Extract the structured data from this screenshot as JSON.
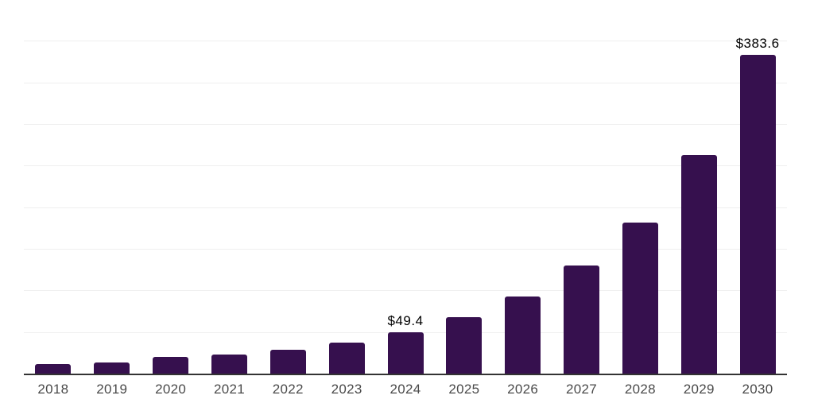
{
  "chart_data": {
    "type": "bar",
    "title": "",
    "xlabel": "",
    "ylabel": "",
    "categories": [
      "2018",
      "2019",
      "2020",
      "2021",
      "2022",
      "2023",
      "2024",
      "2025",
      "2026",
      "2027",
      "2028",
      "2029",
      "2030"
    ],
    "values": [
      11.2,
      13.7,
      19.8,
      23.0,
      28.7,
      37.3,
      49.4,
      67.5,
      92.7,
      130.0,
      181.9,
      262.8,
      383.6
    ],
    "data_labels": [
      "",
      "",
      "",
      "",
      "",
      "",
      "$49.4",
      "",
      "",
      "",
      "",
      "",
      "$383.6"
    ],
    "ylim": [
      0,
      450
    ],
    "grid_step": 50,
    "grid": "horizontal-only",
    "legend": false,
    "y_axis_labels_visible": false,
    "colors": {
      "bar": "#36104e",
      "grid": "#efefef",
      "top_grid": "#e7e7e7",
      "axis": "#333333",
      "tick_label": "#4a4a4a",
      "data_label": "#000000",
      "background": "#ffffff"
    }
  }
}
